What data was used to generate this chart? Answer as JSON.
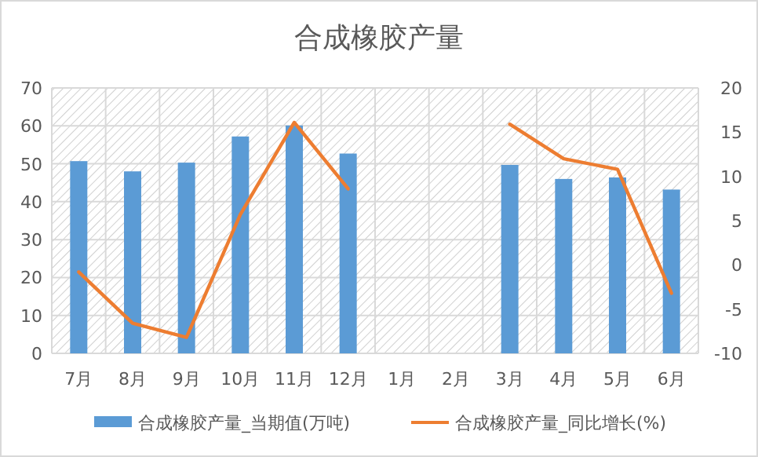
{
  "chart_data": {
    "type": "bar",
    "title": "合成橡胶产量",
    "categories": [
      "7月",
      "8月",
      "9月",
      "10月",
      "11月",
      "12月",
      "1月",
      "2月",
      "3月",
      "4月",
      "5月",
      "6月"
    ],
    "series": [
      {
        "name": "合成橡胶产量_当期值(万吨)",
        "color": "#5b9bd5",
        "values": [
          50.7,
          48.0,
          50.3,
          57.2,
          60.1,
          52.7,
          null,
          null,
          49.7,
          46.0,
          46.4,
          43.2
        ]
      },
      {
        "name": "合成橡胶产量_同比增长(%)",
        "type": "line",
        "axis": "y2",
        "color": "#ed7d31",
        "values": [
          -0.8,
          -6.6,
          -8.2,
          5.7,
          16.1,
          8.6,
          null,
          null,
          15.9,
          12.0,
          10.8,
          -3.2
        ]
      }
    ],
    "ylim": [
      0,
      70
    ],
    "yticks": [
      0,
      10,
      20,
      30,
      40,
      50,
      60,
      70
    ],
    "y2lim": [
      -10,
      20
    ],
    "y2ticks": [
      -10,
      -5,
      0,
      5,
      10,
      15,
      20
    ],
    "grid": true,
    "legend": "bottom"
  }
}
